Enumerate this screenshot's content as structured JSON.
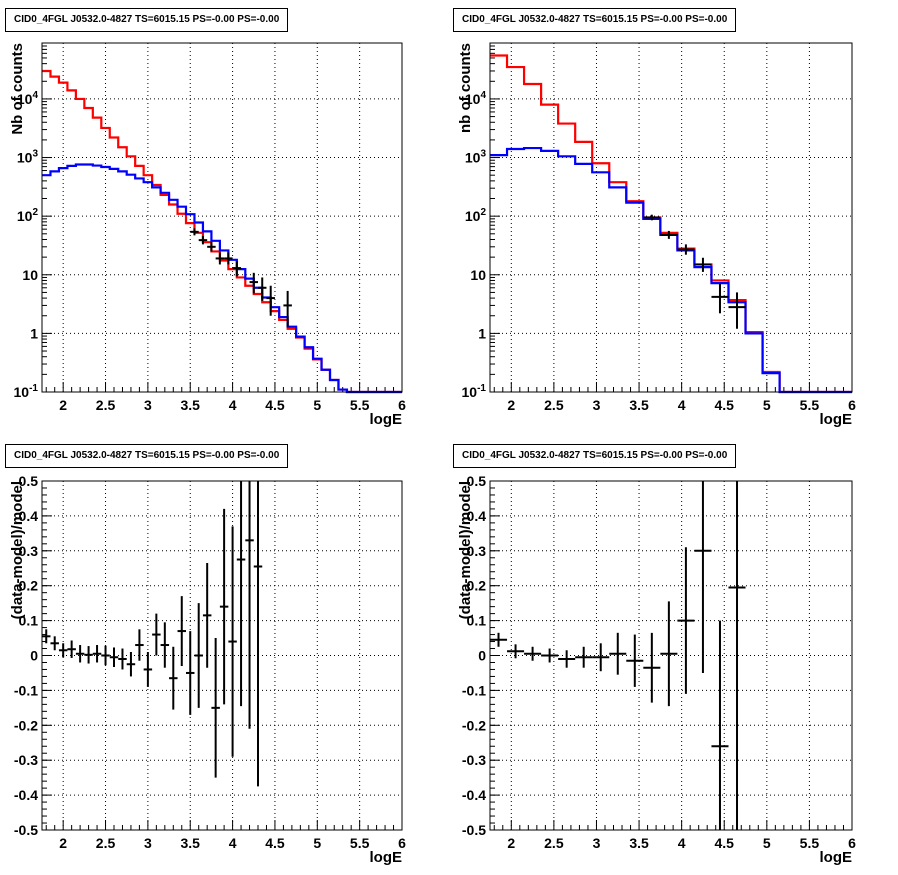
{
  "chart_data": [
    {
      "type": "line",
      "title": "CID0_4FGL J0532.0-4827 TS=6015.15 PS=-0.00 PS=-0.00",
      "xlabel": "logE",
      "ylabel": "Nb of counts",
      "yscale": "log",
      "xlim": [
        1.75,
        6.0
      ],
      "ylim": [
        0.1,
        90000
      ],
      "x_ticks": [
        "2",
        "2.5",
        "3",
        "3.5",
        "4",
        "4.5",
        "5",
        "5.5",
        "6"
      ],
      "y_ticks": [
        "10^-1",
        "1",
        "10",
        "10^2",
        "10^3",
        "10^4"
      ],
      "grid": true,
      "bin_edges": [
        1.75,
        1.85,
        1.95,
        2.05,
        2.15,
        2.25,
        2.35,
        2.45,
        2.55,
        2.65,
        2.75,
        2.85,
        2.95,
        3.05,
        3.15,
        3.25,
        3.35,
        3.45,
        3.55,
        3.65,
        3.75,
        3.85,
        3.95,
        4.05,
        4.15,
        4.25,
        4.35,
        4.45,
        4.55,
        4.65,
        4.75,
        4.85,
        4.95,
        5.05,
        5.15,
        5.25,
        5.35,
        5.45,
        5.55,
        5.65,
        5.75,
        5.85,
        5.95,
        6.0
      ],
      "series": [
        {
          "color": "#ff0000",
          "values": [
            30000,
            24000,
            19000,
            14000,
            10000,
            7000,
            4800,
            3200,
            2200,
            1500,
            1050,
            720,
            500,
            340,
            230,
            158,
            110,
            76,
            52,
            36,
            25,
            17.5,
            12.5,
            9.0,
            6.5,
            4.7,
            3.4,
            2.4,
            1.7,
            1.2,
            0.85,
            0.55,
            0.36,
            0.24,
            0.16,
            0.11,
            0.1,
            0.1,
            0.1,
            0.1,
            0.1,
            0.1,
            0.1
          ]
        },
        {
          "color": "#0000ff",
          "values": [
            500,
            580,
            660,
            720,
            760,
            760,
            730,
            690,
            640,
            580,
            510,
            440,
            380,
            310,
            250,
            190,
            145,
            108,
            78,
            55,
            38,
            26,
            18,
            12.5,
            8.6,
            6.0,
            4.1,
            2.8,
            1.9,
            1.3,
            0.88,
            0.58,
            0.37,
            0.24,
            0.16,
            0.11,
            0.1,
            0.1,
            0.1,
            0.1,
            0.1,
            0.1,
            0.1
          ]
        }
      ],
      "data_points": [
        {
          "x": 3.55,
          "y": 54,
          "dx": 0.05,
          "dyl": 7,
          "dyu": 8
        },
        {
          "x": 3.65,
          "y": 39,
          "dx": 0.05,
          "dyl": 6,
          "dyu": 7
        },
        {
          "x": 3.75,
          "y": 30,
          "dx": 0.05,
          "dyl": 5,
          "dyu": 6
        },
        {
          "x": 3.85,
          "y": 19,
          "dx": 0.05,
          "dyl": 4,
          "dyu": 5
        },
        {
          "x": 3.95,
          "y": 19,
          "dx": 0.05,
          "dyl": 4,
          "dyu": 5
        },
        {
          "x": 4.05,
          "y": 13,
          "dx": 0.05,
          "dyl": 3.6,
          "dyu": 4.2
        },
        {
          "x": 4.25,
          "y": 7.5,
          "dx": 0.05,
          "dyl": 2.7,
          "dyu": 3.3
        },
        {
          "x": 4.35,
          "y": 6.0,
          "dx": 0.05,
          "dyl": 2.4,
          "dyu": 3.0
        },
        {
          "x": 4.45,
          "y": 4.0,
          "dx": 0.05,
          "dyl": 2.0,
          "dyu": 2.5
        },
        {
          "x": 4.65,
          "y": 3.0,
          "dx": 0.05,
          "dyl": 1.7,
          "dyu": 2.3
        }
      ]
    },
    {
      "type": "line",
      "title": "CID0_4FGL J0532.0-4827 TS=6015.15 PS=-0.00 PS=-0.00",
      "xlabel": "logE",
      "ylabel": "nb of counts",
      "yscale": "log",
      "xlim": [
        1.75,
        6.0
      ],
      "ylim": [
        0.1,
        90000
      ],
      "x_ticks": [
        "2",
        "2.5",
        "3",
        "3.5",
        "4",
        "4.5",
        "5",
        "5.5",
        "6"
      ],
      "y_ticks": [
        "10^-1",
        "1",
        "10",
        "10^2",
        "10^3",
        "10^4"
      ],
      "grid": true,
      "bin_edges": [
        1.75,
        1.95,
        2.15,
        2.35,
        2.55,
        2.75,
        2.95,
        3.15,
        3.35,
        3.55,
        3.75,
        3.95,
        4.15,
        4.35,
        4.55,
        4.75,
        4.95,
        5.15,
        5.35,
        5.55,
        5.75,
        5.95,
        6.0
      ],
      "series": [
        {
          "color": "#ff0000",
          "values": [
            55000,
            35000,
            18000,
            8000,
            3800,
            1850,
            800,
            380,
            180,
            95,
            52,
            28,
            15,
            8,
            3.7,
            1.05,
            0.22,
            0.1,
            0.1,
            0.1,
            0.1,
            0.1
          ]
        },
        {
          "color": "#0000ff",
          "values": [
            1100,
            1400,
            1450,
            1300,
            1050,
            780,
            560,
            310,
            170,
            90,
            48,
            26,
            13.5,
            7.2,
            3.4,
            1.0,
            0.21,
            0.1,
            0.1,
            0.1,
            0.1,
            0.1
          ]
        }
      ],
      "data_points": [
        {
          "x": 3.65,
          "y": 95,
          "dx": 0.1,
          "dyl": 10,
          "dyu": 11
        },
        {
          "x": 3.85,
          "y": 48,
          "dx": 0.1,
          "dyl": 7,
          "dyu": 8
        },
        {
          "x": 4.05,
          "y": 27,
          "dx": 0.1,
          "dyl": 5,
          "dyu": 6
        },
        {
          "x": 4.25,
          "y": 15,
          "dx": 0.1,
          "dyl": 3.8,
          "dyu": 4.5
        },
        {
          "x": 4.45,
          "y": 4.2,
          "dx": 0.1,
          "dyl": 2.0,
          "dyu": 2.8
        },
        {
          "x": 4.65,
          "y": 2.8,
          "dx": 0.1,
          "dyl": 1.6,
          "dyu": 2.2
        }
      ]
    },
    {
      "type": "scatter",
      "title": "CID0_4FGL J0532.0-4827 TS=6015.15 PS=-0.00 PS=-0.00",
      "xlabel": "logE",
      "ylabel": "(data-model)/model",
      "xlim": [
        1.75,
        6.0
      ],
      "ylim": [
        -0.5,
        0.5
      ],
      "x_ticks": [
        "2",
        "2.5",
        "3",
        "3.5",
        "4",
        "4.5",
        "5",
        "5.5",
        "6"
      ],
      "y_ticks": [
        "-0.5",
        "-0.4",
        "-0.3",
        "-0.2",
        "-0.1",
        "0",
        "0.1",
        "0.2",
        "0.3",
        "0.4",
        "0.5"
      ],
      "grid": true,
      "points": [
        {
          "x": 1.8,
          "y": 0.055,
          "dx": 0.05,
          "dy": 0.02
        },
        {
          "x": 1.9,
          "y": 0.035,
          "dx": 0.05,
          "dy": 0.02
        },
        {
          "x": 2.0,
          "y": 0.015,
          "dx": 0.05,
          "dy": 0.02
        },
        {
          "x": 2.1,
          "y": 0.018,
          "dx": 0.05,
          "dy": 0.025
        },
        {
          "x": 2.2,
          "y": 0.005,
          "dx": 0.05,
          "dy": 0.025
        },
        {
          "x": 2.3,
          "y": 0.002,
          "dx": 0.05,
          "dy": 0.025
        },
        {
          "x": 2.4,
          "y": 0.005,
          "dx": 0.05,
          "dy": 0.025
        },
        {
          "x": 2.5,
          "y": 0.0,
          "dx": 0.05,
          "dy": 0.028
        },
        {
          "x": 2.6,
          "y": -0.005,
          "dx": 0.05,
          "dy": 0.028
        },
        {
          "x": 2.7,
          "y": -0.01,
          "dx": 0.05,
          "dy": 0.03
        },
        {
          "x": 2.8,
          "y": -0.025,
          "dx": 0.05,
          "dy": 0.035
        },
        {
          "x": 2.9,
          "y": 0.03,
          "dx": 0.05,
          "dy": 0.045
        },
        {
          "x": 3.0,
          "y": -0.04,
          "dx": 0.05,
          "dy": 0.05
        },
        {
          "x": 3.1,
          "y": 0.06,
          "dx": 0.05,
          "dy": 0.06
        },
        {
          "x": 3.2,
          "y": 0.03,
          "dx": 0.05,
          "dy": 0.065
        },
        {
          "x": 3.3,
          "y": -0.065,
          "dx": 0.05,
          "dy": 0.09
        },
        {
          "x": 3.4,
          "y": 0.07,
          "dx": 0.05,
          "dy": 0.1
        },
        {
          "x": 3.5,
          "y": -0.05,
          "dx": 0.05,
          "dy": 0.12
        },
        {
          "x": 3.6,
          "y": 0.0,
          "dx": 0.05,
          "dy": 0.15
        },
        {
          "x": 3.7,
          "y": 0.115,
          "dx": 0.05,
          "dy": 0.15
        },
        {
          "x": 3.8,
          "y": -0.15,
          "dx": 0.05,
          "dy": 0.2
        },
        {
          "x": 3.9,
          "y": 0.14,
          "dx": 0.05,
          "dy": 0.28
        },
        {
          "x": 4.0,
          "y": 0.04,
          "dx": 0.05,
          "dy": 0.33
        },
        {
          "x": 4.1,
          "y": 0.275,
          "dx": 0.05,
          "dy": 0.42
        },
        {
          "x": 4.2,
          "y": 0.33,
          "dx": 0.05,
          "dy": 0.54
        },
        {
          "x": 4.3,
          "y": 0.255,
          "dx": 0.05,
          "dy": 0.63
        }
      ]
    },
    {
      "type": "scatter",
      "title": "CID0_4FGL J0532.0-4827 TS=6015.15 PS=-0.00 PS=-0.00",
      "xlabel": "logE",
      "ylabel": "(data-model)/model",
      "xlim": [
        1.75,
        6.0
      ],
      "ylim": [
        -0.5,
        0.5
      ],
      "x_ticks": [
        "2",
        "2.5",
        "3",
        "3.5",
        "4",
        "4.5",
        "5",
        "5.5",
        "6"
      ],
      "y_ticks": [
        "-0.5",
        "-0.4",
        "-0.3",
        "-0.2",
        "-0.1",
        "0",
        "0.1",
        "0.2",
        "0.3",
        "0.4",
        "0.5"
      ],
      "grid": true,
      "points": [
        {
          "x": 1.85,
          "y": 0.045,
          "dx": 0.1,
          "dy": 0.02
        },
        {
          "x": 2.05,
          "y": 0.012,
          "dx": 0.1,
          "dy": 0.02
        },
        {
          "x": 2.25,
          "y": 0.005,
          "dx": 0.1,
          "dy": 0.02
        },
        {
          "x": 2.45,
          "y": 0.0,
          "dx": 0.1,
          "dy": 0.02
        },
        {
          "x": 2.65,
          "y": -0.01,
          "dx": 0.1,
          "dy": 0.025
        },
        {
          "x": 2.85,
          "y": -0.005,
          "dx": 0.1,
          "dy": 0.03
        },
        {
          "x": 3.05,
          "y": -0.005,
          "dx": 0.1,
          "dy": 0.04
        },
        {
          "x": 3.25,
          "y": 0.005,
          "dx": 0.1,
          "dy": 0.06
        },
        {
          "x": 3.45,
          "y": -0.015,
          "dx": 0.1,
          "dy": 0.075
        },
        {
          "x": 3.65,
          "y": -0.035,
          "dx": 0.1,
          "dy": 0.1
        },
        {
          "x": 3.85,
          "y": 0.005,
          "dx": 0.1,
          "dy": 0.15
        },
        {
          "x": 4.05,
          "y": 0.1,
          "dx": 0.1,
          "dy": 0.21
        },
        {
          "x": 4.25,
          "y": 0.3,
          "dx": 0.1,
          "dy": 0.35
        },
        {
          "x": 4.45,
          "y": -0.26,
          "dx": 0.1,
          "dy": 0.36
        },
        {
          "x": 4.65,
          "y": 0.195,
          "dx": 0.1,
          "dy": 0.9
        }
      ]
    }
  ]
}
